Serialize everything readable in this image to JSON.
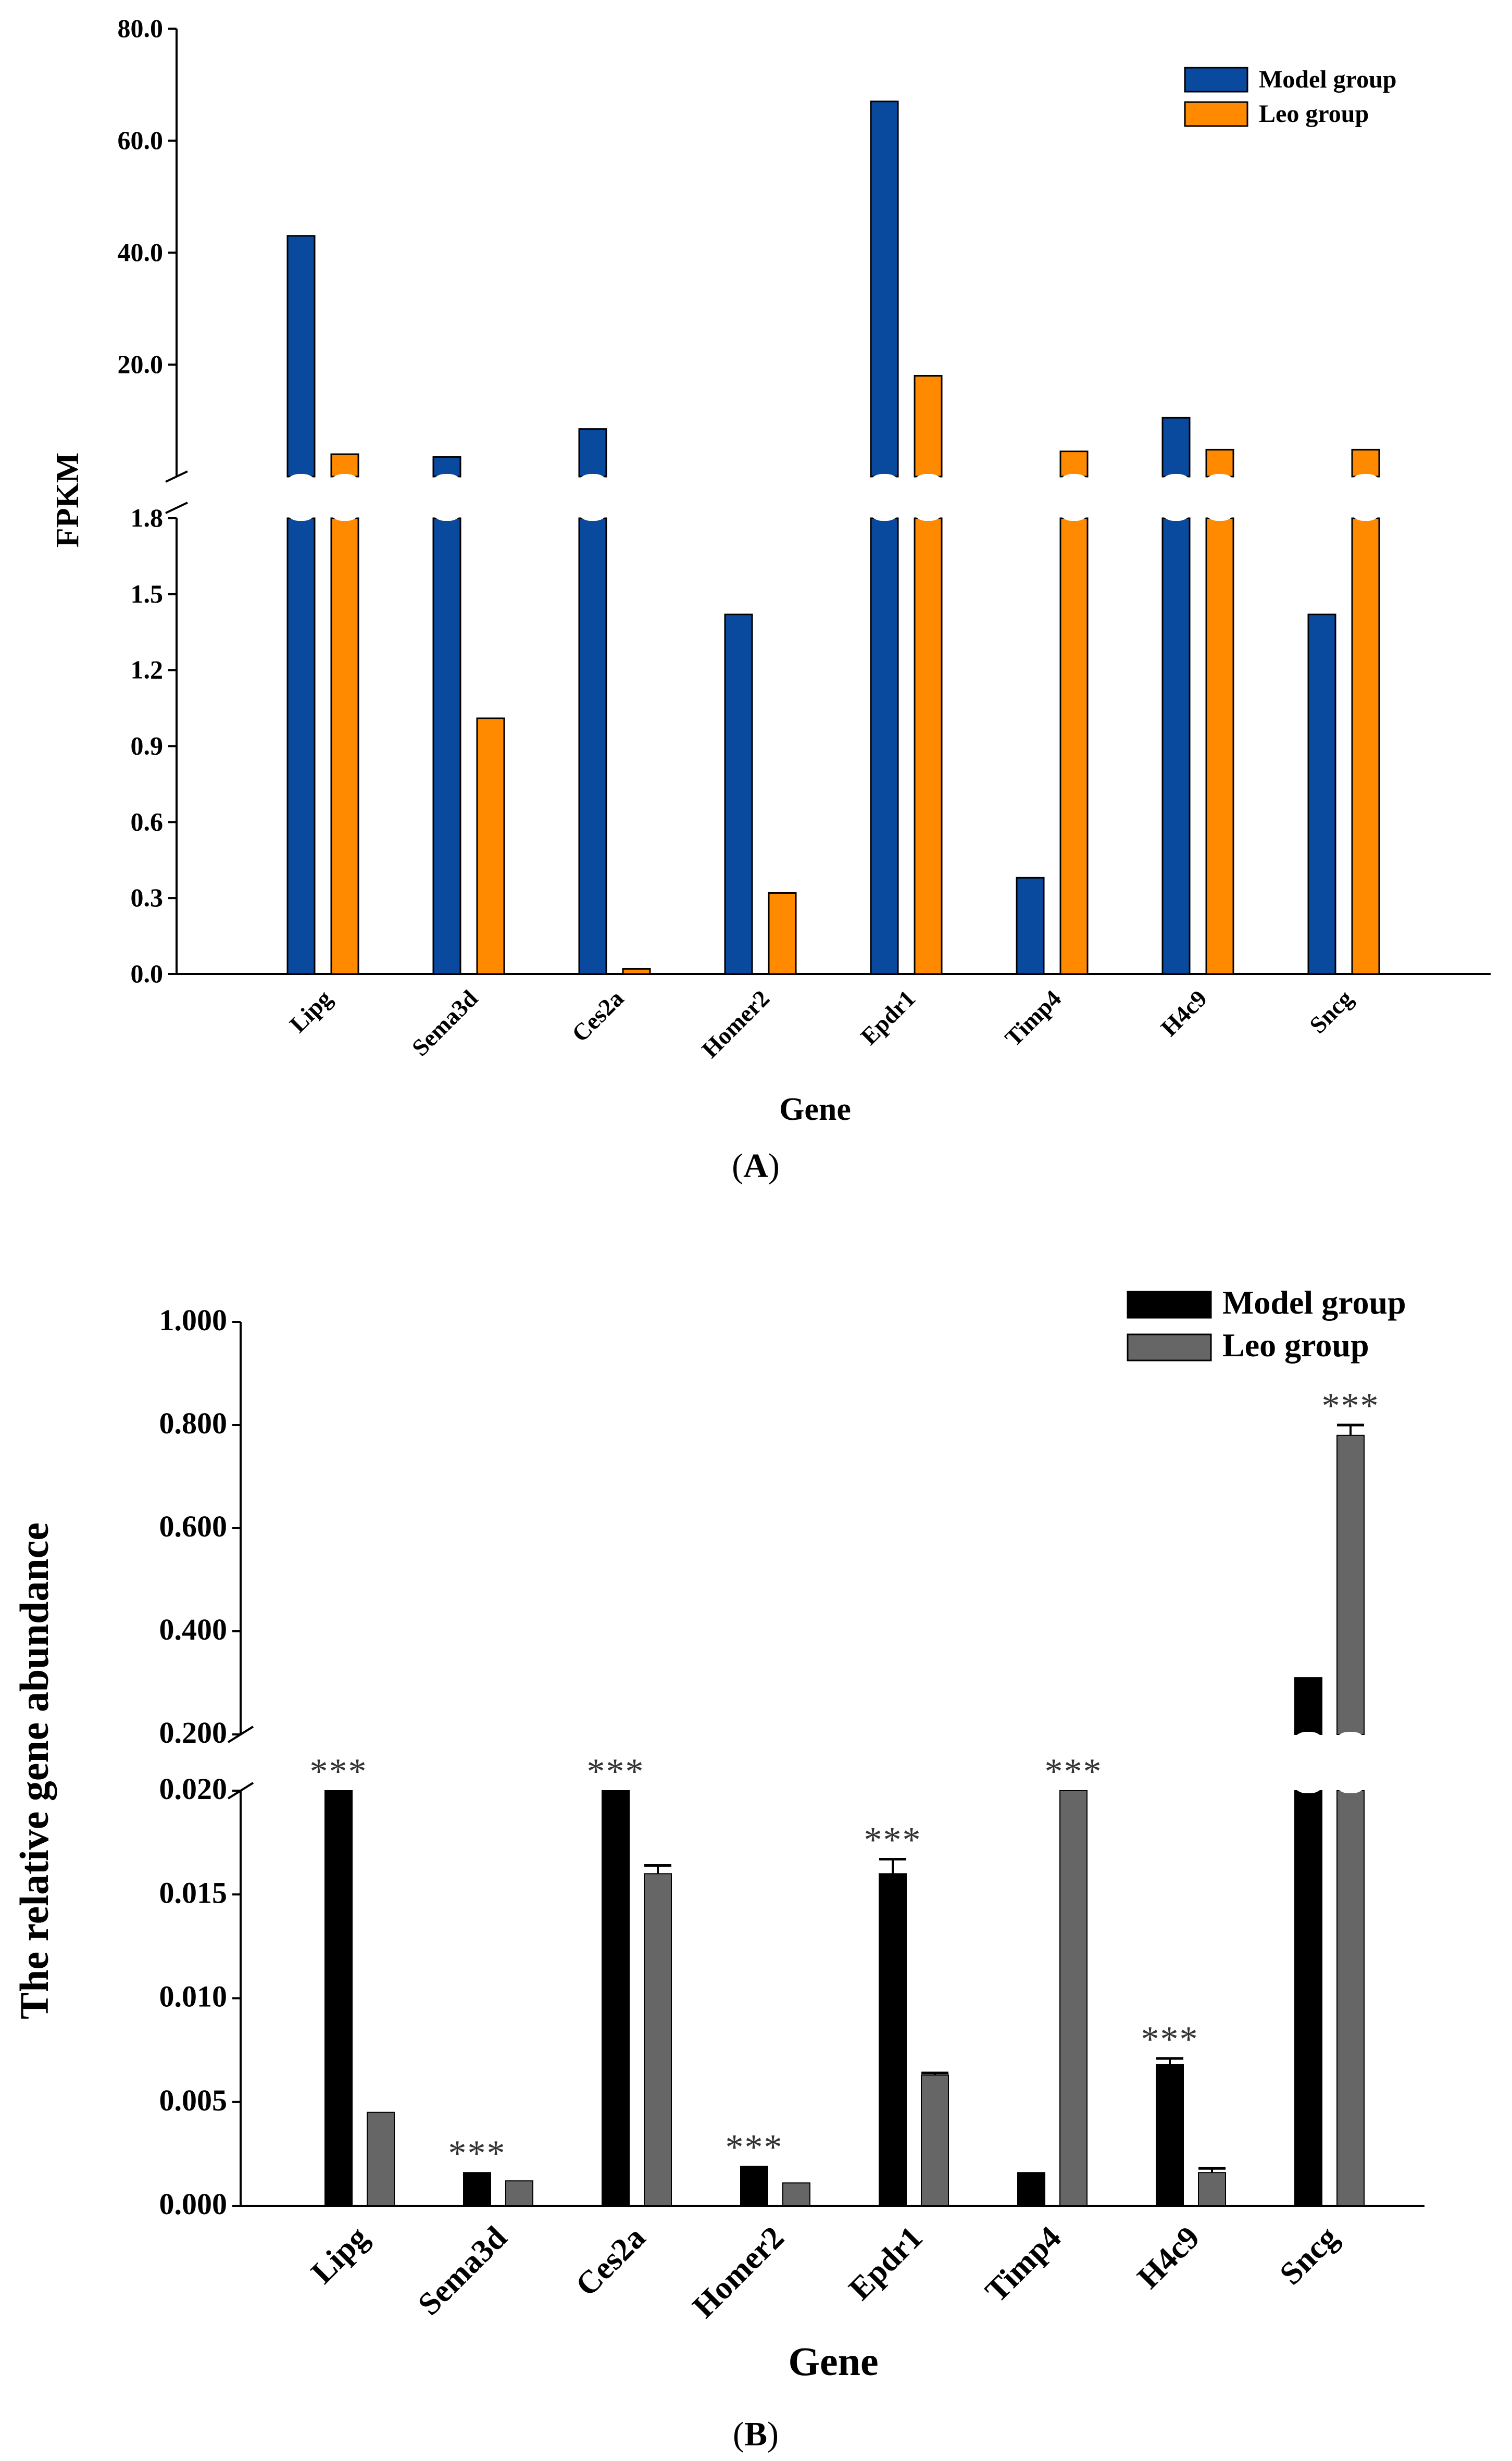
{
  "chart_data": [
    {
      "panel": "A",
      "type": "bar",
      "title": "",
      "xlabel": "Gene",
      "ylabel": "FPKM",
      "axis_break": true,
      "y_lower": {
        "ylim": [
          0,
          1.8
        ],
        "ticks": [
          "0.0",
          "0.3",
          "0.6",
          "0.9",
          "1.2",
          "1.5",
          "1.8"
        ],
        "tick_values": [
          0,
          0.3,
          0.6,
          0.9,
          1.2,
          1.5,
          1.8
        ]
      },
      "y_upper": {
        "ylim": [
          0,
          80
        ],
        "ticks": [
          "20.0",
          "40.0",
          "60.0",
          "80.0"
        ],
        "tick_values": [
          20,
          40,
          60,
          80
        ]
      },
      "categories": [
        "Lipg",
        "Sema3d",
        "Ces2a",
        "Homer2",
        "Epdr1",
        "Timp4",
        "H4c9",
        "Sncg"
      ],
      "series": [
        {
          "name": "Model group",
          "color": "#0a4a9e",
          "values": [
            43.0,
            3.5,
            8.5,
            1.42,
            67.0,
            0.38,
            10.5,
            1.42
          ]
        },
        {
          "name": "Leo group",
          "color": "#ff8a00",
          "values": [
            4.0,
            1.01,
            0.02,
            0.32,
            18.0,
            4.5,
            4.8,
            4.8
          ]
        }
      ],
      "legend_position": "top-right"
    },
    {
      "panel": "B",
      "type": "bar",
      "title": "",
      "xlabel": "Gene",
      "ylabel": "The relative gene abundance",
      "axis_break": true,
      "y_lower": {
        "ylim": [
          0,
          0.02
        ],
        "ticks": [
          "0.000",
          "0.005",
          "0.010",
          "0.015",
          "0.020"
        ],
        "tick_values": [
          0,
          0.005,
          0.01,
          0.015,
          0.02
        ]
      },
      "y_upper": {
        "ylim": [
          0.2,
          1.0
        ],
        "ticks": [
          "0.200",
          "0.400",
          "0.600",
          "0.800",
          "1.000"
        ],
        "tick_values": [
          0.2,
          0.4,
          0.6,
          0.8,
          1.0
        ]
      },
      "categories": [
        "Lipg",
        "Sema3d",
        "Ces2a",
        "Homer2",
        "Epdr1",
        "Timp4",
        "H4c9",
        "Sncg"
      ],
      "series": [
        {
          "name": "Model group",
          "color": "#000000",
          "values": [
            0.02,
            0.0016,
            0.02,
            0.0019,
            0.016,
            0.0016,
            0.0068,
            0.31
          ],
          "errors": [
            0,
            0,
            0,
            0,
            0.0007,
            0,
            0.0003,
            0
          ]
        },
        {
          "name": "Leo group",
          "color": "#666666",
          "values": [
            0.0045,
            0.0012,
            0.016,
            0.0011,
            0.0063,
            0.02,
            0.0016,
            0.78
          ],
          "errors": [
            0,
            0,
            0.0004,
            0,
            0.0001,
            0,
            0.0002,
            0.02
          ]
        }
      ],
      "significance": [
        {
          "category": "Lipg",
          "label": "***"
        },
        {
          "category": "Sema3d",
          "label": "***"
        },
        {
          "category": "Ces2a",
          "label": "***"
        },
        {
          "category": "Homer2",
          "label": "***"
        },
        {
          "category": "Epdr1",
          "label": "***"
        },
        {
          "category": "Timp4",
          "label": "***"
        },
        {
          "category": "H4c9",
          "label": "***"
        },
        {
          "category": "Sncg",
          "label": "***"
        }
      ],
      "legend_position": "top-right"
    }
  ]
}
